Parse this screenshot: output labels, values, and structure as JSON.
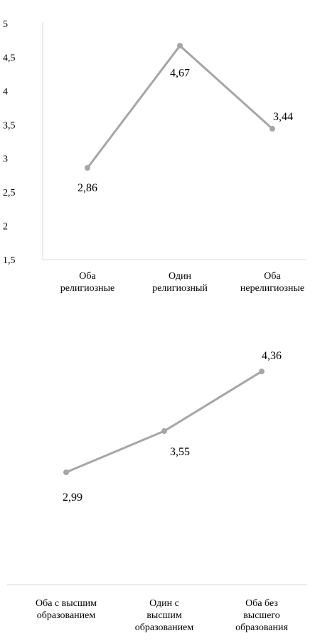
{
  "chart_data": [
    {
      "type": "line",
      "categories": [
        [
          "Оба",
          "религиозные"
        ],
        [
          "Один",
          "религиозный"
        ],
        [
          "Оба",
          "нерелигиозные"
        ]
      ],
      "values": [
        2.86,
        4.67,
        3.44
      ],
      "data_labels": [
        "2,86",
        "4,67",
        "3,44"
      ],
      "ylim": [
        1.5,
        5
      ],
      "y_ticks": [
        "1,5",
        "2",
        "2,5",
        "3",
        "3,5",
        "4",
        "4,5",
        "5"
      ],
      "grid": false,
      "series_color": "#a6a6a6"
    },
    {
      "type": "line",
      "categories": [
        [
          "Оба с высшим",
          "образованием"
        ],
        [
          "Один с",
          "высшим",
          "образованием"
        ],
        [
          "Оба без",
          "высшего",
          "образования"
        ]
      ],
      "values": [
        2.99,
        3.55,
        4.36
      ],
      "data_labels": [
        "2,99",
        "3,55",
        "4,36"
      ],
      "y_axis_shown": false,
      "grid": false,
      "series_color": "#a6a6a6"
    }
  ]
}
